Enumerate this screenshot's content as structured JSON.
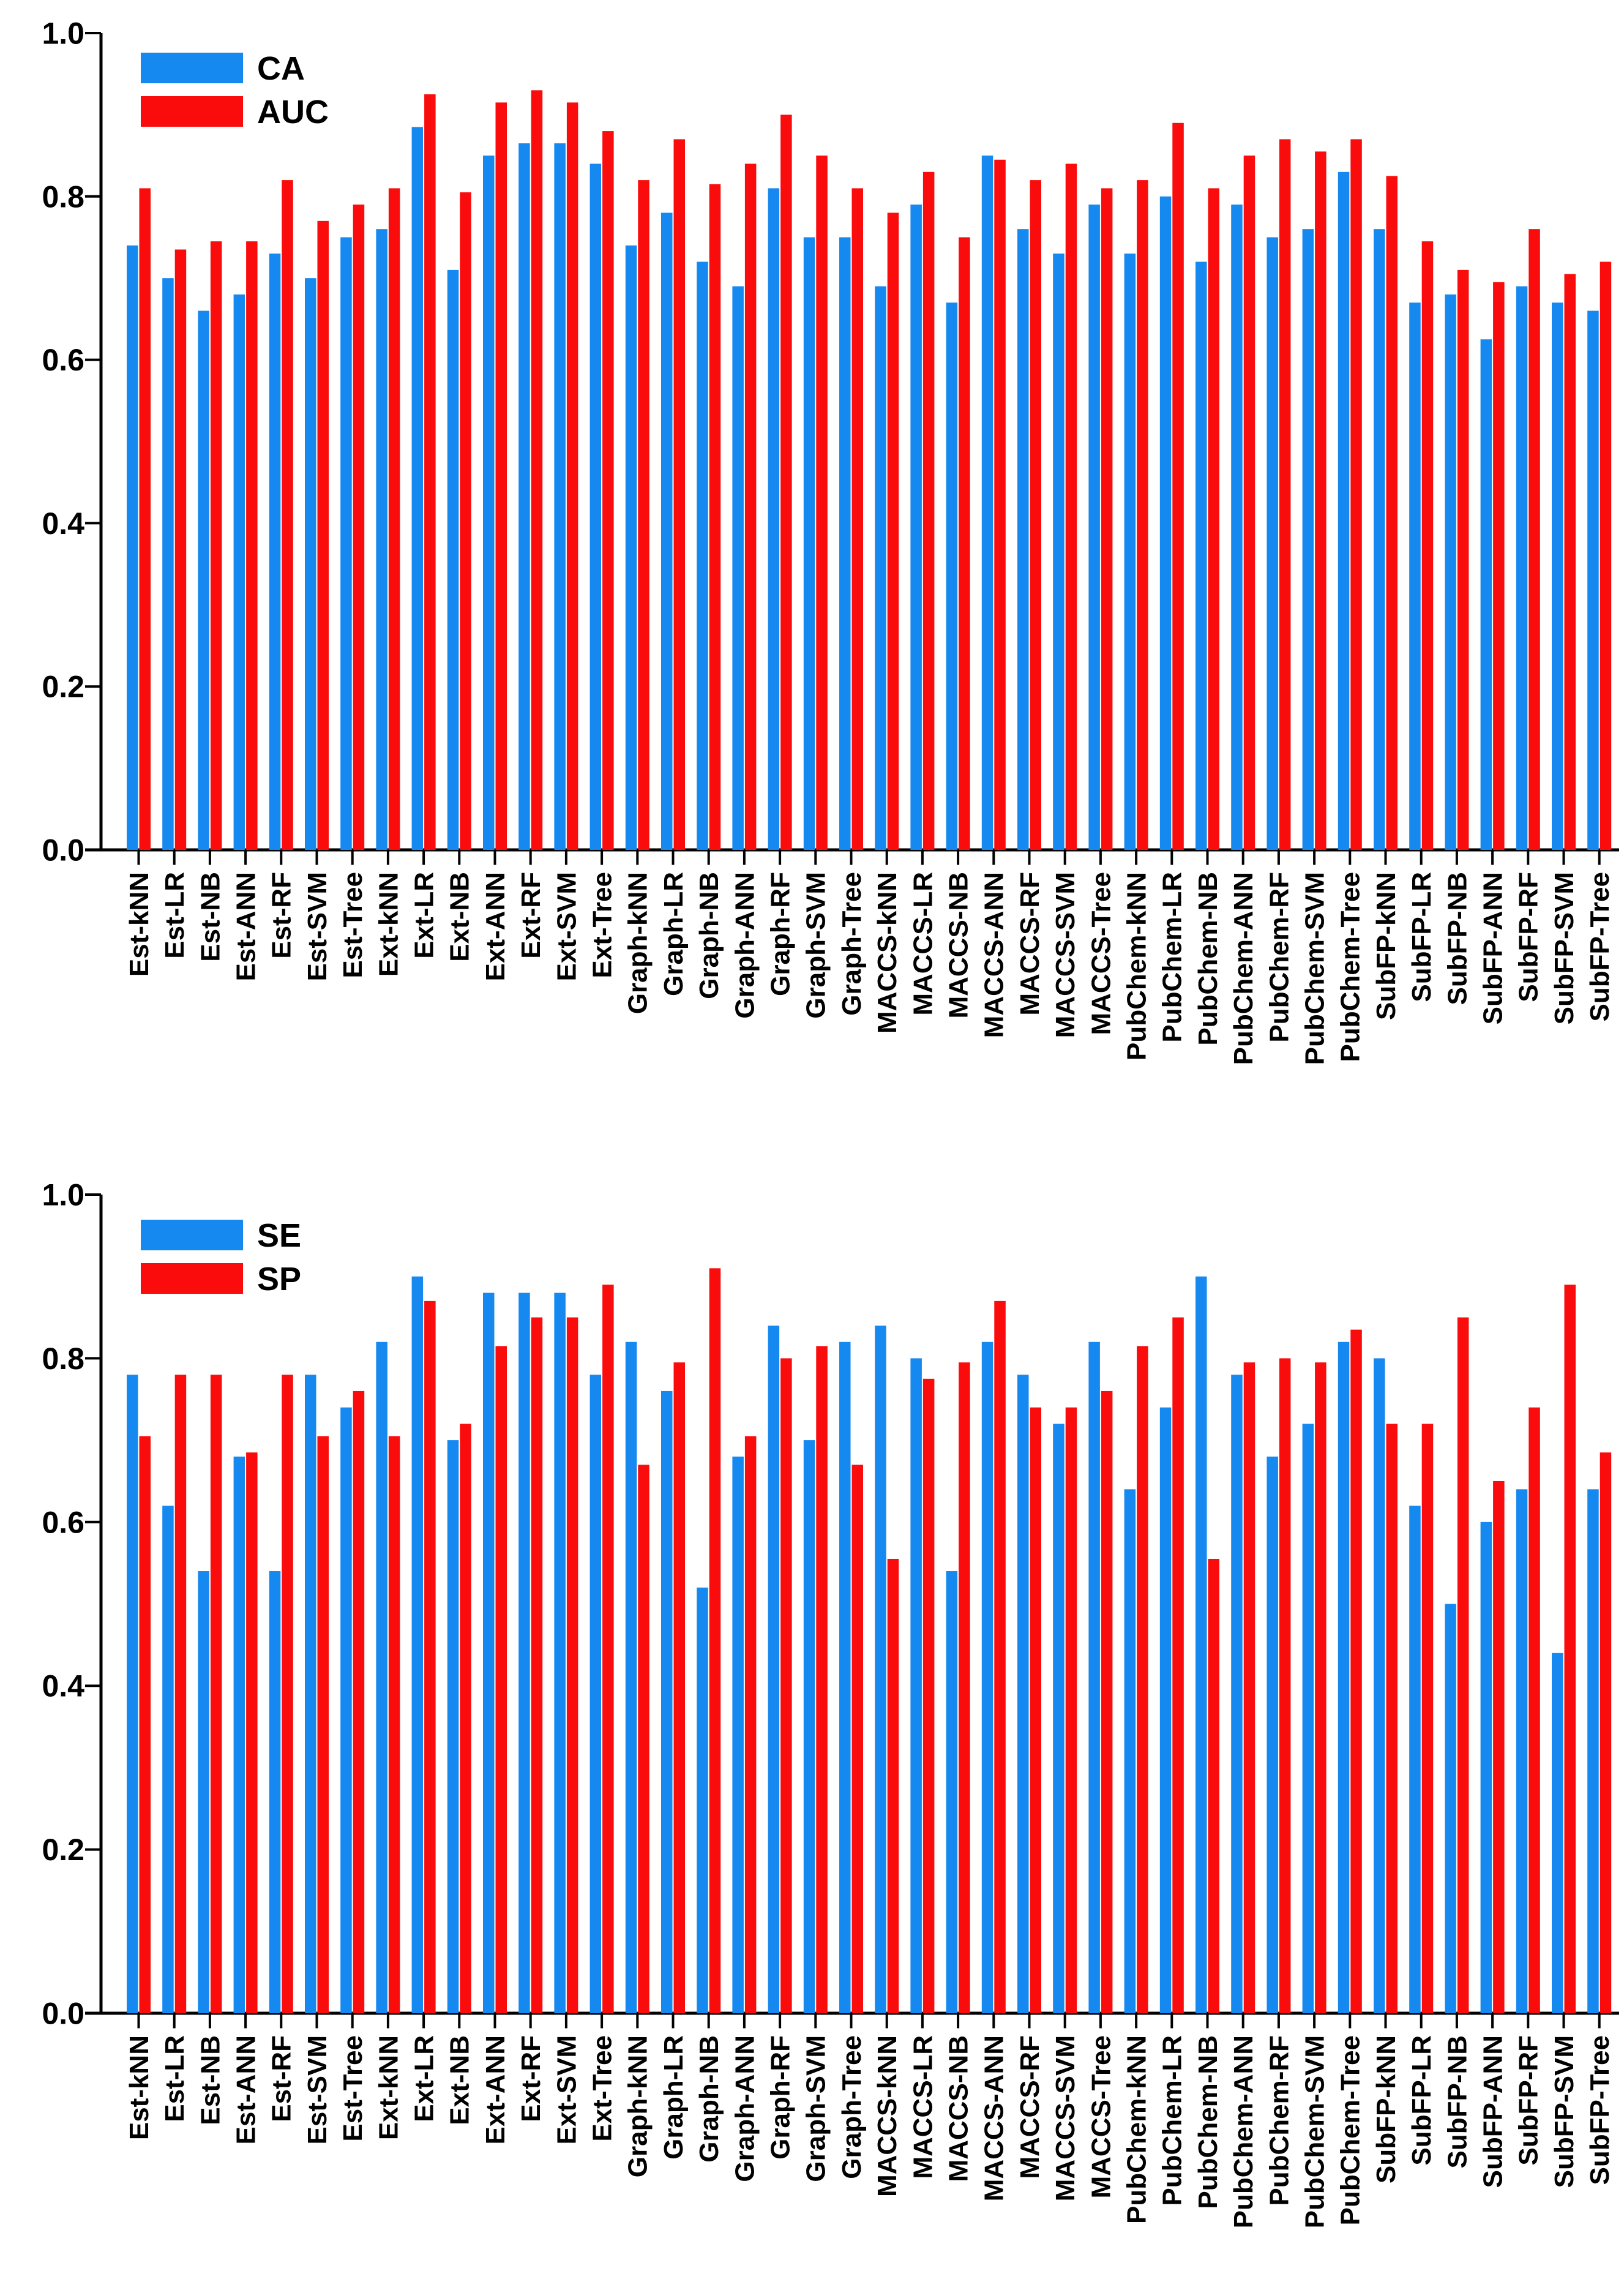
{
  "page": {
    "background": "#ffffff",
    "colors": {
      "axis": "#000000",
      "text": "#000000",
      "bar_blue": "#1689F0",
      "bar_red": "#FA0C0C"
    }
  },
  "chart_data": [
    {
      "type": "bar",
      "panel": "top",
      "title": "",
      "xlabel": "",
      "ylabel": "",
      "ylim": [
        0.0,
        1.0
      ],
      "grid": false,
      "legend_position": "upper-left-inside",
      "ytick_values": [
        0.0,
        0.2,
        0.4,
        0.6,
        0.8,
        1.0
      ],
      "ytick_labels": [
        "0.0",
        "0.2",
        "0.4",
        "0.6",
        "0.8",
        "1.0"
      ],
      "categories": [
        "Est-kNN",
        "Est-LR",
        "Est-NB",
        "Est-ANN",
        "Est-RF",
        "Est-SVM",
        "Est-Tree",
        "Ext-kNN",
        "Ext-LR",
        "Ext-NB",
        "Ext-ANN",
        "Ext-RF",
        "Ext-SVM",
        "Ext-Tree",
        "Graph-kNN",
        "Graph-LR",
        "Graph-NB",
        "Graph-ANN",
        "Graph-RF",
        "Graph-SVM",
        "Graph-Tree",
        "MACCS-kNN",
        "MACCS-LR",
        "MACCS-NB",
        "MACCS-ANN",
        "MACCS-RF",
        "MACCS-SVM",
        "MACCS-Tree",
        "PubChem-kNN",
        "PubChem-LR",
        "PubChem-NB",
        "PubChem-ANN",
        "PubChem-RF",
        "PubChem-SVM",
        "PubChem-Tree",
        "SubFP-kNN",
        "SubFP-LR",
        "SubFP-NB",
        "SubFP-ANN",
        "SubFP-RF",
        "SubFP-SVM",
        "SubFP-Tree"
      ],
      "series": [
        {
          "name": "CA",
          "color": "#1689F0",
          "values": [
            0.74,
            0.7,
            0.66,
            0.68,
            0.73,
            0.7,
            0.75,
            0.76,
            0.885,
            0.71,
            0.85,
            0.865,
            0.865,
            0.84,
            0.74,
            0.78,
            0.72,
            0.69,
            0.81,
            0.75,
            0.75,
            0.69,
            0.79,
            0.67,
            0.85,
            0.76,
            0.73,
            0.79,
            0.73,
            0.8,
            0.72,
            0.79,
            0.75,
            0.76,
            0.83,
            0.76,
            0.67,
            0.68,
            0.625,
            0.69,
            0.67,
            0.66
          ]
        },
        {
          "name": "AUC",
          "color": "#FA0C0C",
          "values": [
            0.81,
            0.735,
            0.745,
            0.745,
            0.82,
            0.77,
            0.79,
            0.81,
            0.925,
            0.805,
            0.915,
            0.93,
            0.915,
            0.88,
            0.82,
            0.87,
            0.815,
            0.84,
            0.9,
            0.85,
            0.81,
            0.78,
            0.83,
            0.75,
            0.845,
            0.82,
            0.84,
            0.81,
            0.82,
            0.89,
            0.81,
            0.85,
            0.87,
            0.855,
            0.87,
            0.825,
            0.745,
            0.71,
            0.695,
            0.76,
            0.705,
            0.72
          ]
        }
      ]
    },
    {
      "type": "bar",
      "panel": "bottom",
      "title": "",
      "xlabel": "",
      "ylabel": "",
      "ylim": [
        0.0,
        1.0
      ],
      "grid": false,
      "legend_position": "upper-left-inside",
      "ytick_values": [
        0.0,
        0.2,
        0.4,
        0.6,
        0.8,
        1.0
      ],
      "ytick_labels": [
        "0.0",
        "0.2",
        "0.4",
        "0.6",
        "0.8",
        "1.0"
      ],
      "categories": [
        "Est-kNN",
        "Est-LR",
        "Est-NB",
        "Est-ANN",
        "Est-RF",
        "Est-SVM",
        "Est-Tree",
        "Ext-kNN",
        "Ext-LR",
        "Ext-NB",
        "Ext-ANN",
        "Ext-RF",
        "Ext-SVM",
        "Ext-Tree",
        "Graph-kNN",
        "Graph-LR",
        "Graph-NB",
        "Graph-ANN",
        "Graph-RF",
        "Graph-SVM",
        "Graph-Tree",
        "MACCS-kNN",
        "MACCS-LR",
        "MACCS-NB",
        "MACCS-ANN",
        "MACCS-RF",
        "MACCS-SVM",
        "MACCS-Tree",
        "PubChem-kNN",
        "PubChem-LR",
        "PubChem-NB",
        "PubChem-ANN",
        "PubChem-RF",
        "PubChem-SVM",
        "PubChem-Tree",
        "SubFP-kNN",
        "SubFP-LR",
        "SubFP-NB",
        "SubFP-ANN",
        "SubFP-RF",
        "SubFP-SVM",
        "SubFP-Tree"
      ],
      "series": [
        {
          "name": "SE",
          "color": "#1689F0",
          "values": [
            0.78,
            0.62,
            0.54,
            0.68,
            0.54,
            0.78,
            0.74,
            0.82,
            0.9,
            0.7,
            0.88,
            0.88,
            0.88,
            0.78,
            0.82,
            0.76,
            0.52,
            0.68,
            0.84,
            0.7,
            0.82,
            0.84,
            0.8,
            0.54,
            0.82,
            0.78,
            0.72,
            0.82,
            0.64,
            0.74,
            0.9,
            0.78,
            0.68,
            0.72,
            0.82,
            0.8,
            0.62,
            0.5,
            0.6,
            0.64,
            0.44,
            0.64
          ]
        },
        {
          "name": "SP",
          "color": "#FA0C0C",
          "values": [
            0.705,
            0.78,
            0.78,
            0.685,
            0.78,
            0.705,
            0.76,
            0.705,
            0.87,
            0.72,
            0.815,
            0.85,
            0.85,
            0.89,
            0.67,
            0.795,
            0.91,
            0.705,
            0.8,
            0.815,
            0.67,
            0.555,
            0.775,
            0.795,
            0.87,
            0.74,
            0.74,
            0.76,
            0.815,
            0.85,
            0.555,
            0.795,
            0.8,
            0.795,
            0.835,
            0.72,
            0.72,
            0.85,
            0.65,
            0.74,
            0.89,
            0.685
          ]
        }
      ]
    }
  ]
}
